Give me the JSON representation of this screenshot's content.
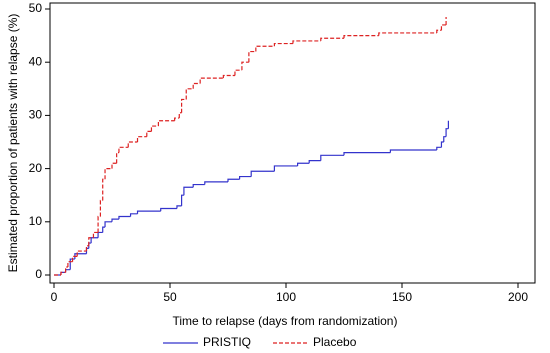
{
  "chart_data": {
    "type": "line",
    "step": true,
    "xlabel": "Time to relapse (days from randomization)",
    "ylabel": "Estimated proportion of patients with relapse (%)",
    "xlim": [
      0,
      200
    ],
    "xticks": [
      0,
      50,
      100,
      150,
      200
    ],
    "ylim": [
      0,
      50
    ],
    "yticks": [
      0,
      10,
      20,
      30,
      40,
      50
    ],
    "legend": "bottom",
    "series": [
      {
        "name": "PRISTIQ",
        "color": "#3333cc",
        "dash": false,
        "x": [
          0,
          3,
          5,
          7,
          9,
          14,
          15,
          16,
          19,
          21,
          22,
          25,
          28,
          33,
          36,
          46,
          53,
          55,
          56,
          60,
          65,
          75,
          80,
          85,
          95,
          105,
          110,
          115,
          125,
          145,
          165,
          167,
          168,
          169,
          170
        ],
        "values": [
          0,
          0.5,
          1,
          3,
          4,
          5,
          6,
          7,
          8,
          9,
          10,
          10.5,
          11,
          11.5,
          12,
          12.5,
          13,
          15,
          16.5,
          17,
          17.5,
          18,
          18.5,
          19.5,
          20.5,
          21,
          21.5,
          22.5,
          23,
          23.5,
          24,
          25,
          26,
          27.5,
          29
        ]
      },
      {
        "name": "Placebo",
        "color": "#dd2222",
        "dash": true,
        "x": [
          0,
          3,
          5,
          6,
          8,
          10,
          14,
          15,
          17,
          19,
          20,
          21,
          22,
          25,
          27,
          28,
          32,
          36,
          40,
          42,
          45,
          52,
          54,
          55,
          57,
          60,
          63,
          73,
          78,
          81,
          84,
          87,
          95,
          103,
          115,
          125,
          140,
          165,
          167,
          169
        ],
        "values": [
          0,
          0.5,
          1.5,
          2.5,
          3.5,
          4.5,
          5.5,
          7,
          8,
          11,
          14,
          18,
          20,
          21,
          23,
          24,
          25,
          26,
          27,
          28,
          29,
          29.5,
          30.5,
          33,
          35,
          36,
          37,
          37.5,
          38.5,
          40,
          42,
          43,
          43.5,
          44,
          44.5,
          45,
          45.5,
          46,
          47,
          48.5
        ]
      }
    ]
  }
}
